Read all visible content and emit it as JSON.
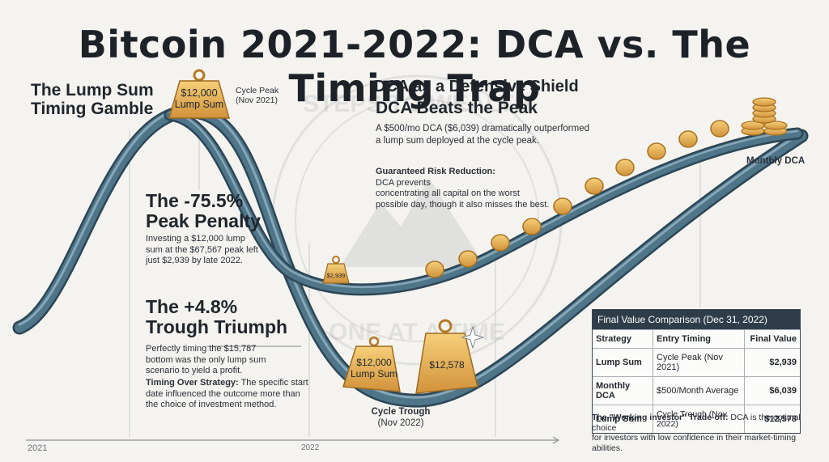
{
  "title": "Bitcoin 2021-2022: DCA vs. The Timing Trap",
  "watermark": {
    "top": "STEPS TO WEALTH",
    "bottom": "ONE AT A TIME"
  },
  "lump_gamble": {
    "line1": "The Lump Sum",
    "line2": "Timing Gamble"
  },
  "peak_weight": {
    "amount": "$12,000",
    "label": "Lump Sum"
  },
  "cycle_peak": {
    "line1": "Cycle Peak",
    "line2": "(Nov 2021)"
  },
  "dca_shield": "DCA as a Defensive Shield",
  "dca_beats": {
    "title": "DCA Beats the Peak",
    "line1": "A $500/mo DCA ($6,039) dramatically outperformed",
    "line2": "a lump sum deployed at the cycle peak."
  },
  "risk": {
    "title": "Guaranteed Risk Reduction:",
    "line1": "DCA prevents",
    "line2": "concentrating all capital on the worst",
    "line3": "possible day, though it also misses the best."
  },
  "peak_penalty": {
    "title1": "The -75.5%",
    "title2": "Peak Penalty",
    "line1": "Investing a $12,000 lump",
    "line2": "sum at the $67,567 peak left",
    "line3": "just $2,939 by late 2022."
  },
  "small_weight": "$2,939",
  "trough": {
    "title1": "The +4.8%",
    "title2": "Trough Triumph",
    "line1": "Perfectly timing the $15,787",
    "line2": "bottom was the only lump sum",
    "line3": "scenario to yield a profit."
  },
  "timing": {
    "bold": "Timing Over Strategy:",
    "rest1": " The specific start",
    "line2": "date influenced the outcome more than",
    "line3": "the choice of investment method."
  },
  "trough_weight1": {
    "amount": "$12,000",
    "label": "Lump Sum"
  },
  "trough_weight2": "$12,578",
  "cycle_trough": {
    "line1": "Cycle Trough",
    "line2": "(Nov 2022)"
  },
  "monthly_dca_label": "Monthly DCA",
  "axis": {
    "start": "2021",
    "mid": "2022"
  },
  "table": {
    "caption": "Final Value Comparison (Dec 31, 2022)",
    "headers": [
      "Strategy",
      "Entry Timing",
      "Final Value"
    ],
    "rows": [
      [
        "Lump Sum",
        "Cycle Peak (Nov 2021)",
        "$2,939"
      ],
      [
        "Monthly DCA",
        "$500/Month Average",
        "$6,039"
      ],
      [
        "Lump Sum",
        "Cycle Trough (Nov 2022)",
        "$12,578"
      ]
    ]
  },
  "tradeoff": {
    "bold": "The \"Working investor\" Trade-off:",
    "rest1": " DCA is the optimal choice",
    "line2": "for investors with low confidence in their market-timing abilities."
  },
  "colors": {
    "track": "#4f7589",
    "track_dark": "#2c4656",
    "track_light": "#86a7b8",
    "gold": "#e9b04f",
    "gold_dark": "#b57b25",
    "table_header": "#2f3d4b"
  }
}
